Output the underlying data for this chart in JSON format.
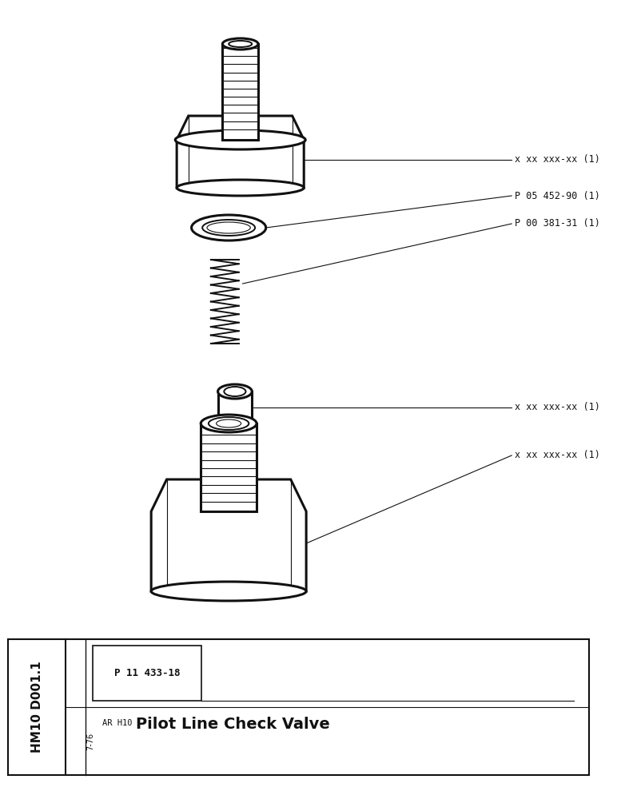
{
  "background_color": "#ffffff",
  "fig_width": 7.72,
  "fig_height": 10.0,
  "label1": "x xx xxx-xx (1)",
  "label2": "P 05 452-90 (1)",
  "label3": "P 00 381-31 (1)",
  "label4": "x xx xxx-xx (1)",
  "label5": "x xx xxx-xx (1)",
  "part_number": "P 11 433-18",
  "date_code": "7-76",
  "subtitle": "AR H10",
  "title": "Pilot Line Check Valve",
  "footer_id": "HM10 D001.1"
}
